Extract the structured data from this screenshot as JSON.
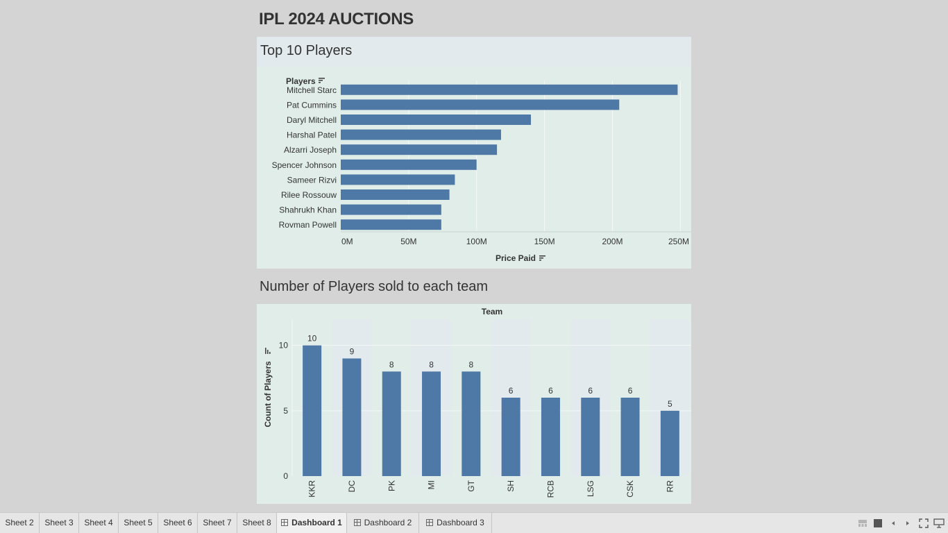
{
  "dashboard": {
    "title": "IPL 2024 AUCTIONS"
  },
  "top_players_panel": {
    "title": "Top 10 Players"
  },
  "team_panel": {
    "title": "Number of Players sold to each team"
  },
  "colors": {
    "bar": "#4e79a7",
    "background": "#d4d4d4",
    "panel": "#e0ede9",
    "panel_header": "#e3eaed"
  },
  "chart_data": [
    {
      "type": "bar",
      "orientation": "horizontal",
      "ylabel": "Players",
      "xlabel": "Price Paid",
      "categories": [
        "Mitchell Starc",
        "Pat Cummins",
        "Daryl Mitchell",
        "Harshal Patel",
        "Alzarri Joseph",
        "Spencer Johnson",
        "Sameer Rizvi",
        "Rilee Rossouw",
        "Shahrukh Khan",
        "Rovman Powell"
      ],
      "values": [
        248,
        205,
        140,
        118,
        115,
        100,
        84,
        80,
        74,
        74
      ],
      "unit": "M",
      "ticks": [
        "0M",
        "50M",
        "100M",
        "150M",
        "200M",
        "250M"
      ],
      "xlim": [
        0,
        258
      ],
      "grid": true
    },
    {
      "type": "bar",
      "orientation": "vertical",
      "header": "Team",
      "ylabel": "Count of Players",
      "categories": [
        "KKR",
        "DC",
        "PK",
        "MI",
        "GT",
        "SH",
        "RCB",
        "LSG",
        "CSK",
        "RR"
      ],
      "values": [
        10,
        9,
        8,
        8,
        8,
        6,
        6,
        6,
        6,
        5
      ],
      "ticks": [
        "0",
        "5",
        "10"
      ],
      "ylim": [
        0,
        12
      ],
      "data_labels": true,
      "grid": true
    }
  ],
  "tabs": [
    "Sheet 2",
    "Sheet 3",
    "Sheet 4",
    "Sheet 5",
    "Sheet 6",
    "Sheet 7",
    "Sheet 8",
    "Dashboard 1",
    "Dashboard 2",
    "Dashboard 3"
  ],
  "active_tab": "Dashboard 1",
  "controls": [
    "grid-view-icon",
    "filmstrip-icon",
    "prev-icon",
    "next-icon",
    "fullscreen-icon",
    "presentation-icon"
  ]
}
